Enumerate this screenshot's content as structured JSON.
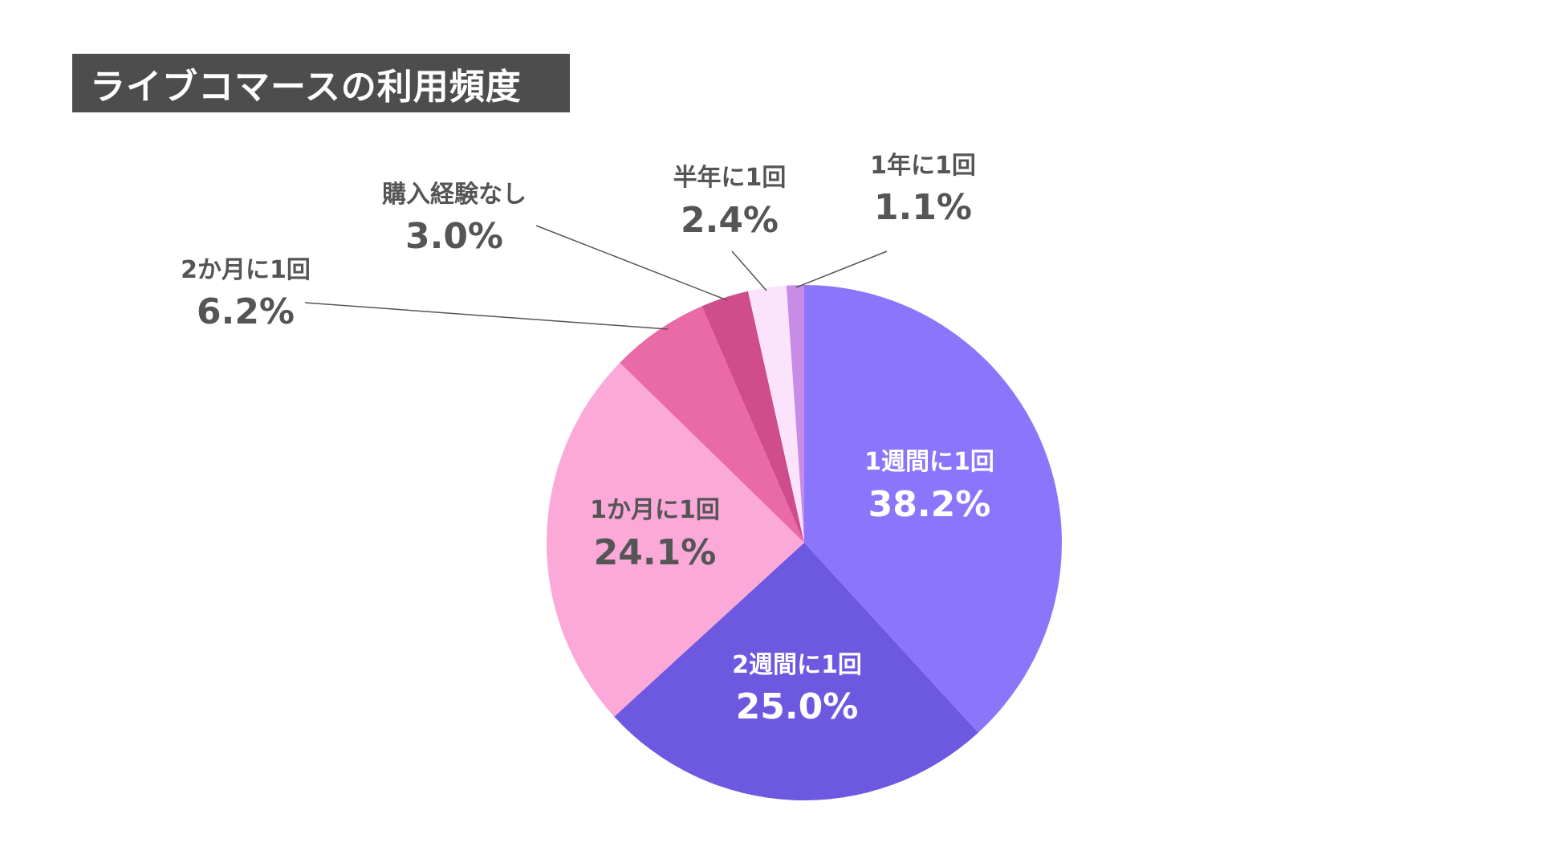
{
  "chart_data": {
    "type": "pie",
    "title": "ライブコマースの利用頻度",
    "slices": [
      {
        "label": "1週間に1回",
        "value": 38.2,
        "display": "38.2%",
        "color": "#8b76fb"
      },
      {
        "label": "2週間に1回",
        "value": 25.0,
        "display": "25.0%",
        "color": "#6d58e0"
      },
      {
        "label": "1か月に1回",
        "value": 24.1,
        "display": "24.1%",
        "color": "#fba9d8"
      },
      {
        "label": "2か月に1回",
        "value": 6.2,
        "display": "6.2%",
        "color": "#e96aa7"
      },
      {
        "label": "購入経験なし",
        "value": 3.0,
        "display": "3.0%",
        "color": "#cf4d8d"
      },
      {
        "label": "半年に1回",
        "value": 2.4,
        "display": "2.4%",
        "color": "#fbe3fb"
      },
      {
        "label": "1年に1回",
        "value": 1.1,
        "display": "1.1%",
        "color": "#c78de6"
      }
    ],
    "start_angle": "12 o'clock",
    "direction": "clockwise"
  }
}
